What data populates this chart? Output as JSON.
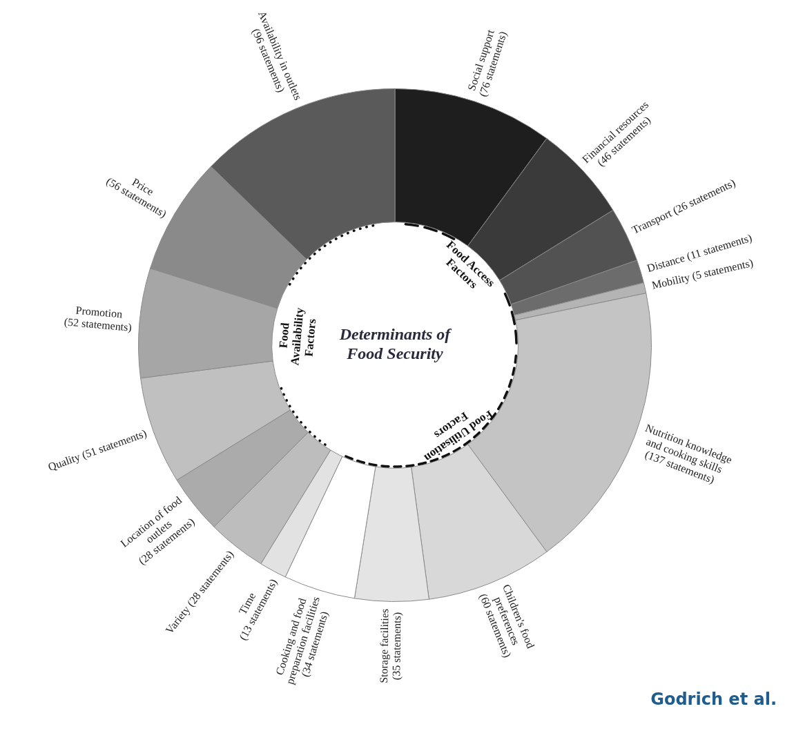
{
  "chart_data": {
    "type": "donut",
    "title": "Determinants of Food Security",
    "categories": [
      "Social support",
      "Financial resources",
      "Transport",
      "Distance",
      "Mobility",
      "Nutrition knowledge and cooking skills",
      "Children's food preferences",
      "Storage facilities",
      "Cooking and food preparation facilities",
      "Time",
      "Variety",
      "Location of food outlets",
      "Quality",
      "Promotion",
      "Price",
      "Availability in outlets"
    ],
    "values": [
      76,
      46,
      26,
      11,
      5,
      137,
      60,
      35,
      34,
      13,
      28,
      28,
      51,
      52,
      56,
      96
    ],
    "value_labels": [
      "(76 statements)",
      "(46 statements)",
      "(26 statements)",
      "(11 statements)",
      "(5 statements)",
      "(137 statements)",
      "(60 statements)",
      "(35 statements)",
      "(34 statements)",
      "(13 statements)",
      "(28 statements)",
      "(28 statements)",
      "(51 statements)",
      "(52 statements)",
      "(56 statements)",
      "(96 statements)"
    ],
    "colors": [
      "#1e1e1e",
      "#3a3a3a",
      "#525252",
      "#6c6c6c",
      "#b4b4b4",
      "#c4c4c4",
      "#d8d8d8",
      "#e4e4e4",
      "#ffffff",
      "#e2e2e2",
      "#bdbdbd",
      "#ababab",
      "#c0c0c0",
      "#a6a6a6",
      "#8a8a8a",
      "#5a5a5a"
    ],
    "annotations": [
      "Food Access Factors",
      "Food Utilisation Factors",
      "Food Availability Factors",
      "Godrich et al."
    ],
    "legend": false
  }
}
